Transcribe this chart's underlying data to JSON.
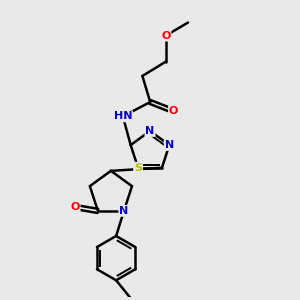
{
  "background_color": "#e9e9e9",
  "atom_colors": {
    "C": "#000000",
    "N": "#0000cc",
    "O": "#ff0000",
    "S": "#bbbb00",
    "H": "#558888"
  },
  "bond_color": "#000000",
  "bond_width": 1.8,
  "figsize": [
    3.0,
    3.0
  ],
  "dpi": 100
}
